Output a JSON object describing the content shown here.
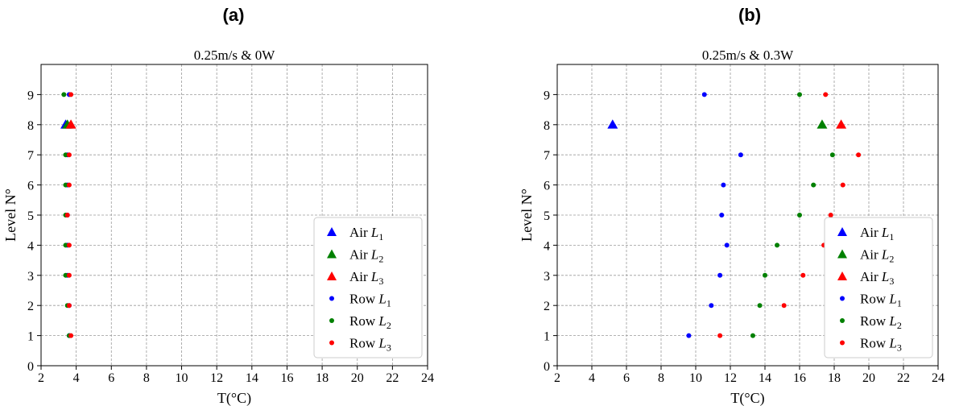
{
  "panels": [
    {
      "letter": "(a)"
    },
    {
      "letter": "(b)"
    }
  ],
  "chart_data": [
    {
      "type": "scatter",
      "title": "0.25m/s & 0W",
      "xlabel": "T(°C)",
      "ylabel": "Level N°",
      "xlim": [
        2,
        24
      ],
      "ylim": [
        0,
        10
      ],
      "xticks": [
        2,
        4,
        6,
        8,
        10,
        12,
        14,
        16,
        18,
        20,
        22,
        24
      ],
      "yticks": [
        0,
        1,
        2,
        3,
        4,
        5,
        6,
        7,
        8,
        9
      ],
      "grid": true,
      "legend_position": "lower-right",
      "series": [
        {
          "name": "Air L1",
          "label_main": "Air ",
          "label_sub": "1",
          "marker": "triangle",
          "color": "#0000ff",
          "points": [
            [
              3.4,
              8
            ]
          ]
        },
        {
          "name": "Air L2",
          "label_main": "Air ",
          "label_sub": "2",
          "marker": "triangle",
          "color": "#008000",
          "points": [
            [
              3.5,
              8
            ]
          ]
        },
        {
          "name": "Air L3",
          "label_main": "Air ",
          "label_sub": "3",
          "marker": "triangle",
          "color": "#ff0000",
          "points": [
            [
              3.7,
              8
            ]
          ]
        },
        {
          "name": "Row L1",
          "label_main": "Row ",
          "label_sub": "1",
          "marker": "dot",
          "color": "#0000ff",
          "points": [
            [
              3.6,
              1
            ],
            [
              3.6,
              2
            ],
            [
              3.5,
              3
            ],
            [
              3.5,
              4
            ],
            [
              3.5,
              5
            ],
            [
              3.5,
              6
            ],
            [
              3.5,
              7
            ],
            [
              3.6,
              9
            ]
          ]
        },
        {
          "name": "Row L2",
          "label_main": "Row ",
          "label_sub": "2",
          "marker": "dot",
          "color": "#008000",
          "points": [
            [
              3.6,
              1
            ],
            [
              3.5,
              2
            ],
            [
              3.4,
              3
            ],
            [
              3.4,
              4
            ],
            [
              3.4,
              5
            ],
            [
              3.4,
              6
            ],
            [
              3.4,
              7
            ],
            [
              3.3,
              9
            ]
          ]
        },
        {
          "name": "Row L3",
          "label_main": "Row ",
          "label_sub": "3",
          "marker": "dot",
          "color": "#ff0000",
          "points": [
            [
              3.7,
              1
            ],
            [
              3.6,
              2
            ],
            [
              3.6,
              3
            ],
            [
              3.6,
              4
            ],
            [
              3.5,
              5
            ],
            [
              3.6,
              6
            ],
            [
              3.6,
              7
            ],
            [
              3.7,
              9
            ]
          ]
        }
      ]
    },
    {
      "type": "scatter",
      "title": "0.25m/s & 0.3W",
      "xlabel": "T(°C)",
      "ylabel": "Level N°",
      "xlim": [
        2,
        24
      ],
      "ylim": [
        0,
        10
      ],
      "xticks": [
        2,
        4,
        6,
        8,
        10,
        12,
        14,
        16,
        18,
        20,
        22,
        24
      ],
      "yticks": [
        0,
        1,
        2,
        3,
        4,
        5,
        6,
        7,
        8,
        9
      ],
      "grid": true,
      "legend_position": "lower-right",
      "series": [
        {
          "name": "Air L1",
          "label_main": "Air ",
          "label_sub": "1",
          "marker": "triangle",
          "color": "#0000ff",
          "points": [
            [
              5.2,
              8
            ]
          ]
        },
        {
          "name": "Air L2",
          "label_main": "Air ",
          "label_sub": "2",
          "marker": "triangle",
          "color": "#008000",
          "points": [
            [
              17.3,
              8
            ]
          ]
        },
        {
          "name": "Air L3",
          "label_main": "Air ",
          "label_sub": "3",
          "marker": "triangle",
          "color": "#ff0000",
          "points": [
            [
              18.4,
              8
            ]
          ]
        },
        {
          "name": "Row L1",
          "label_main": "Row ",
          "label_sub": "1",
          "marker": "dot",
          "color": "#0000ff",
          "points": [
            [
              9.6,
              1
            ],
            [
              10.9,
              2
            ],
            [
              11.4,
              3
            ],
            [
              11.8,
              4
            ],
            [
              11.5,
              5
            ],
            [
              11.6,
              6
            ],
            [
              12.6,
              7
            ],
            [
              10.5,
              9
            ]
          ]
        },
        {
          "name": "Row L2",
          "label_main": "Row ",
          "label_sub": "2",
          "marker": "dot",
          "color": "#008000",
          "points": [
            [
              13.3,
              1
            ],
            [
              13.7,
              2
            ],
            [
              14.0,
              3
            ],
            [
              14.7,
              4
            ],
            [
              16.0,
              5
            ],
            [
              16.8,
              6
            ],
            [
              17.9,
              7
            ],
            [
              16.0,
              9
            ]
          ]
        },
        {
          "name": "Row L3",
          "label_main": "Row ",
          "label_sub": "3",
          "marker": "dot",
          "color": "#ff0000",
          "points": [
            [
              11.4,
              1
            ],
            [
              15.1,
              2
            ],
            [
              16.2,
              3
            ],
            [
              17.4,
              4
            ],
            [
              17.8,
              5
            ],
            [
              18.5,
              6
            ],
            [
              19.4,
              7
            ],
            [
              17.5,
              9
            ]
          ]
        }
      ]
    }
  ]
}
